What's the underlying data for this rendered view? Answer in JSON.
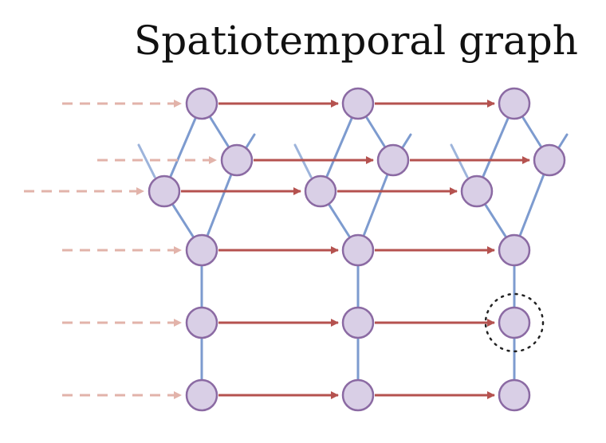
{
  "title": "Spatiotemporal graph",
  "colors": {
    "node_fill": "#d9cfe6",
    "node_stroke": "#8b6aa3",
    "spatial_edge": "#7d9bcf",
    "temporal_edge": "#b5524f",
    "incoming_edge": "#e2b3aa",
    "highlight_ring": "#222222"
  },
  "graph": {
    "time_steps": 3,
    "nodes_per_step": 6,
    "spatial_edges": [
      [
        0,
        1
      ],
      [
        0,
        2
      ],
      [
        1,
        3
      ],
      [
        2,
        3
      ],
      [
        3,
        4
      ],
      [
        4,
        5
      ]
    ],
    "stub_edges_at_nodes": [
      1,
      2
    ],
    "incoming_temporal_edges": "all nodes",
    "highlighted_node": {
      "time_step": 3,
      "node": 4
    }
  }
}
